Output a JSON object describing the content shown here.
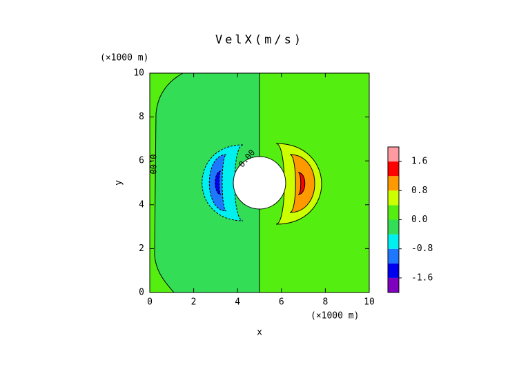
{
  "chart_data": {
    "type": "contour",
    "title": "VelX(m/s)",
    "xlabel": "x",
    "ylabel": "y",
    "xunit": "(×1000 m)",
    "yunit": "(×1000 m)",
    "xlim": [
      0,
      10
    ],
    "ylim": [
      0,
      10
    ],
    "xticks": [
      0,
      2,
      4,
      6,
      8,
      10
    ],
    "yticks": [
      0,
      2,
      4,
      6,
      8,
      10
    ],
    "levels": [
      -2,
      -1.6,
      -1.2,
      -0.8,
      -0.4,
      0,
      0.4,
      0.8,
      1.2,
      1.6,
      2
    ],
    "colors": [
      "#8000c0",
      "#0000f0",
      "#1e78ff",
      "#00f0f0",
      "#33dd55",
      "#55ee11",
      "#ccff00",
      "#ff9900",
      "#ff0000",
      "#ff9aa0"
    ],
    "colorbar_ticks": [
      -1.6,
      -0.8,
      {
        "value": 0,
        "label": "0.0"
      },
      0.8,
      1.6
    ],
    "contour_labels": [
      "0.00",
      "0.00"
    ]
  }
}
